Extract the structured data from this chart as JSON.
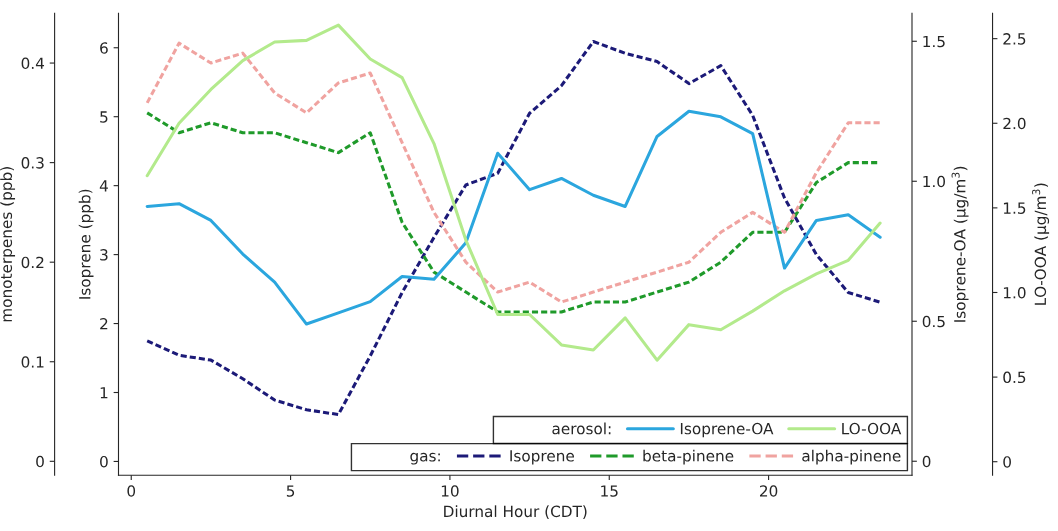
{
  "chart_data": [
    {
      "type": "line",
      "xlabel": "Diurnal Hour (CDT)",
      "ylabel": "Isoprene (ppb)",
      "y2label": "monoterpenes (ppb)",
      "x": [
        0.5,
        1.5,
        2.5,
        3.5,
        4.5,
        5.5,
        6.5,
        7.5,
        8.5,
        9.5,
        10.5,
        11.5,
        12.5,
        13.5,
        14.5,
        15.5,
        16.5,
        17.5,
        18.5,
        19.5,
        20.5,
        21.5,
        22.5,
        23.5
      ],
      "xlim": [
        -0.4,
        24.5
      ],
      "xticks": [
        0,
        5,
        10,
        15,
        20
      ],
      "ylim": [
        -0.2,
        6.5
      ],
      "yticks": [
        0,
        1,
        2,
        3,
        4,
        5,
        6
      ],
      "y2lim": [
        -0.014,
        0.45
      ],
      "y2ticks": [
        0,
        0.1,
        0.2,
        0.3,
        0.4
      ],
      "grid": false,
      "marker": "none",
      "legend": "bottom right",
      "annotations": [
        "gas:"
      ],
      "series": [
        {
          "name": "Isoprene",
          "color": "#1c1a78",
          "line_style": "dashed",
          "values": [
            1.75,
            1.54,
            1.47,
            1.2,
            0.89,
            0.75,
            0.68,
            1.53,
            2.45,
            3.25,
            4.01,
            4.18,
            5.05,
            5.45,
            6.09,
            5.92,
            5.8,
            5.48,
            5.74,
            5.02,
            3.82,
            3.0,
            2.45,
            2.31
          ]
        },
        {
          "name": "beta-pinene",
          "color": "#1f9a2a",
          "axis": "y2",
          "line_style": "dashed",
          "values": [
            0.35,
            0.33,
            0.34,
            0.33,
            0.33,
            0.32,
            0.31,
            0.33,
            0.24,
            0.19,
            0.17,
            0.15,
            0.15,
            0.15,
            0.16,
            0.16,
            0.17,
            0.18,
            0.2,
            0.23,
            0.23,
            0.28,
            0.3,
            0.3
          ]
        },
        {
          "name": "alpha-pinene",
          "color": "#f0a3a0",
          "axis": "y2",
          "line_style": "dashed",
          "values": [
            0.36,
            0.42,
            0.4,
            0.41,
            0.37,
            0.35,
            0.38,
            0.39,
            0.32,
            0.25,
            0.2,
            0.17,
            0.18,
            0.16,
            0.17,
            0.18,
            0.19,
            0.2,
            0.23,
            0.25,
            0.23,
            0.29,
            0.34,
            0.34
          ]
        }
      ]
    },
    {
      "type": "line",
      "ylabel": "Isoprene-OA (µg/m$^{3}$)",
      "y2label": "LO-OOA (µg/m$^{3}$)",
      "x": [
        0.5,
        1.5,
        2.5,
        3.5,
        4.5,
        5.5,
        6.5,
        7.5,
        8.5,
        9.5,
        10.5,
        11.5,
        12.5,
        13.5,
        14.5,
        15.5,
        16.5,
        17.5,
        18.5,
        19.5,
        20.5,
        21.5,
        22.5,
        23.5
      ],
      "xlim": [
        -0.4,
        24.5
      ],
      "tick_labels": "y",
      "ylim": [
        -0.05,
        1.6
      ],
      "yticks": [
        0,
        0.5,
        {
          "value": 1,
          "label": "1.0"
        },
        1.5
      ],
      "y2lim": [
        -0.08,
        2.65
      ],
      "y2ticks": [
        0,
        0.5,
        {
          "value": 1,
          "label": "1.0"
        },
        1.5,
        {
          "value": 2,
          "label": "2.0"
        },
        2.5
      ],
      "grid": false,
      "marker": "none",
      "legend": "bottom right",
      "annotations": [
        "aerosol:"
      ],
      "series": [
        {
          "name": "Isoprene-OA",
          "color": "#2ba6de",
          "line_style": "solid",
          "values": [
            0.91,
            0.92,
            0.86,
            0.74,
            0.64,
            0.49,
            0.53,
            0.57,
            0.66,
            0.65,
            0.78,
            1.1,
            0.97,
            1.01,
            0.95,
            0.91,
            1.16,
            1.25,
            1.23,
            1.17,
            0.69,
            0.86,
            0.88,
            0.8
          ]
        },
        {
          "name": "LO-OOA",
          "color": "#b3ea8c",
          "axis": "y2",
          "line_style": "solid",
          "values": [
            1.69,
            2.0,
            2.2,
            2.37,
            2.48,
            2.49,
            2.58,
            2.38,
            2.27,
            1.88,
            1.31,
            0.87,
            0.87,
            0.69,
            0.66,
            0.85,
            0.6,
            0.81,
            0.78,
            0.89,
            1.01,
            1.11,
            1.19,
            1.41
          ]
        }
      ]
    }
  ]
}
